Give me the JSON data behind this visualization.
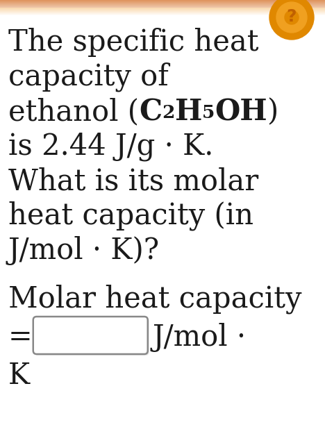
{
  "background_color": "#ffffff",
  "text_color": "#1a1a1a",
  "line1": "The specific heat",
  "line2": "capacity of",
  "line3_pre": "ethanol (",
  "line3_C": "C",
  "line3_sub1": "2",
  "line3_H": "H",
  "line3_sub2": "5",
  "line3_OH": "OH",
  "line3_post": ")",
  "line4": "is 2.44 J/g · K.",
  "line5": "What is its molar",
  "line6": "heat capacity (in",
  "line7": "J/mol · K)?",
  "line8": "Molar heat capacity",
  "line9_eq": "=",
  "line9_units": "J/mol ·",
  "line10": "K",
  "fontsize": 30,
  "sub_fontsize": 19,
  "input_box_border": "#888888",
  "input_box_fill": "#ffffff",
  "top_bar_color1": "#cc4400",
  "top_bar_color2": "#ee8800",
  "icon_color": "#dd8800"
}
